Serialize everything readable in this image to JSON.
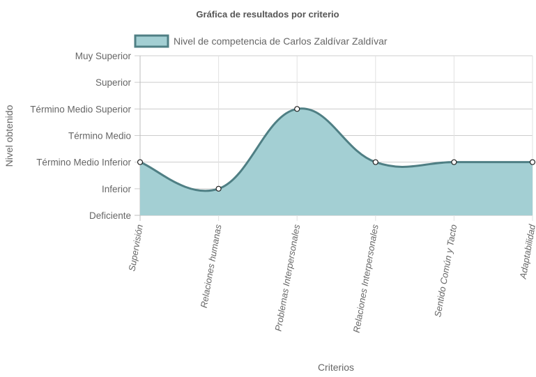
{
  "chart_data": {
    "type": "area",
    "title": "Gráfica de resultados por criterio",
    "xlabel": "Criterios",
    "ylabel": "Nivel obtenido",
    "y_levels": [
      "Deficiente",
      "Inferior",
      "Término Medio Inferior",
      "Término Medio",
      "Término Medio Superior",
      "Superior",
      "Muy Superior"
    ],
    "ylim": [
      0,
      6
    ],
    "categories": [
      "Supervisión",
      "Relaciones humanas",
      "Problemas Interpersonales",
      "Relaciones Interpersonales",
      "Sentido Común y Tacto",
      "Adaptabilidad"
    ],
    "series": [
      {
        "name": "Nivel de competencia de Carlos Zaldívar Zaldívar",
        "values": [
          2,
          1,
          4,
          2,
          2,
          2
        ],
        "fill_color": "#a3cfd3",
        "line_color": "#4f7f84"
      }
    ],
    "grid": true,
    "legend": "top"
  }
}
